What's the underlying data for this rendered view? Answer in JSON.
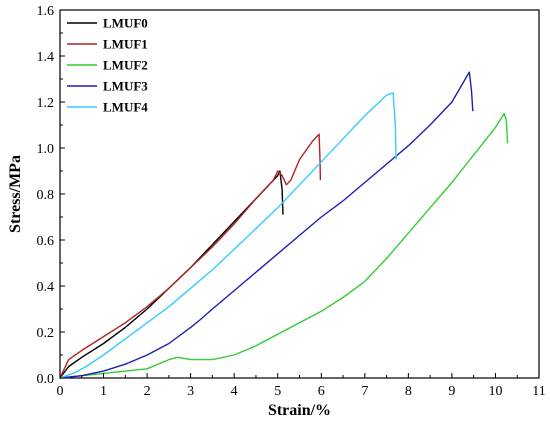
{
  "chart_data": {
    "type": "line",
    "title": "",
    "xlabel": "Strain/%",
    "ylabel": "Stress/MPa",
    "xlim": [
      0,
      11
    ],
    "ylim": [
      0,
      1.6
    ],
    "xticks": [
      0,
      1,
      2,
      3,
      4,
      5,
      6,
      7,
      8,
      9,
      10,
      11
    ],
    "yticks": [
      0.0,
      0.2,
      0.4,
      0.6,
      0.8,
      1.0,
      1.2,
      1.4,
      1.6
    ],
    "xtick_labels": [
      "0",
      "1",
      "2",
      "3",
      "4",
      "5",
      "6",
      "7",
      "8",
      "9",
      "10",
      "11"
    ],
    "ytick_labels": [
      "0.0",
      "0.2",
      "0.4",
      "0.6",
      "0.8",
      "1.0",
      "1.2",
      "1.4",
      "1.6"
    ],
    "grid": false,
    "legend_position": "top-left",
    "series": [
      {
        "name": "LMUF0",
        "color": "#000000",
        "x": [
          0,
          0.2,
          0.5,
          1,
          1.5,
          2,
          2.5,
          3,
          3.5,
          4,
          4.5,
          5,
          5.05,
          5.1,
          5.12
        ],
        "y": [
          0,
          0.05,
          0.09,
          0.15,
          0.22,
          0.3,
          0.39,
          0.48,
          0.58,
          0.68,
          0.78,
          0.88,
          0.9,
          0.82,
          0.71
        ]
      },
      {
        "name": "LMUF1",
        "color": "#B22222",
        "x": [
          0,
          0.2,
          0.5,
          1,
          1.5,
          2,
          2.5,
          3,
          3.5,
          4,
          4.5,
          4.9,
          5.0,
          5.1,
          5.2,
          5.3,
          5.5,
          5.8,
          5.95,
          5.97,
          5.98
        ],
        "y": [
          0,
          0.08,
          0.12,
          0.18,
          0.24,
          0.31,
          0.39,
          0.48,
          0.57,
          0.67,
          0.78,
          0.86,
          0.9,
          0.88,
          0.84,
          0.86,
          0.95,
          1.03,
          1.06,
          0.95,
          0.86
        ]
      },
      {
        "name": "LMUF2",
        "color": "#33CC33",
        "x": [
          0,
          0.5,
          1,
          1.5,
          2,
          2.5,
          2.7,
          3,
          3.5,
          4,
          4.5,
          5,
          5.5,
          6,
          6.5,
          7,
          7.5,
          8,
          8.5,
          9,
          9.5,
          10,
          10.2,
          10.25,
          10.28
        ],
        "y": [
          0,
          0.01,
          0.02,
          0.03,
          0.04,
          0.08,
          0.09,
          0.08,
          0.08,
          0.1,
          0.14,
          0.19,
          0.24,
          0.29,
          0.35,
          0.42,
          0.52,
          0.63,
          0.74,
          0.85,
          0.97,
          1.09,
          1.15,
          1.12,
          1.02
        ]
      },
      {
        "name": "LMUF3",
        "color": "#1F1FB4",
        "x": [
          0,
          0.5,
          1,
          1.5,
          2,
          2.5,
          3,
          3.2,
          3.5,
          4,
          4.5,
          5,
          5.5,
          6,
          6.5,
          7,
          7.5,
          8,
          8.5,
          9,
          9.4,
          9.45,
          9.48
        ],
        "y": [
          0,
          0.01,
          0.03,
          0.06,
          0.1,
          0.15,
          0.22,
          0.25,
          0.3,
          0.38,
          0.46,
          0.54,
          0.62,
          0.7,
          0.77,
          0.85,
          0.93,
          1.01,
          1.1,
          1.2,
          1.33,
          1.25,
          1.16
        ]
      },
      {
        "name": "LMUF4",
        "color": "#33CCFF",
        "x": [
          0,
          0.3,
          0.6,
          1,
          1.5,
          2,
          2.5,
          3,
          3.5,
          4,
          4.5,
          5,
          5.5,
          6,
          6.5,
          7,
          7.5,
          7.65,
          7.7,
          7.72
        ],
        "y": [
          0,
          0.02,
          0.05,
          0.1,
          0.17,
          0.24,
          0.31,
          0.39,
          0.47,
          0.56,
          0.65,
          0.74,
          0.84,
          0.94,
          1.04,
          1.14,
          1.23,
          1.24,
          1.1,
          0.95
        ]
      }
    ]
  }
}
